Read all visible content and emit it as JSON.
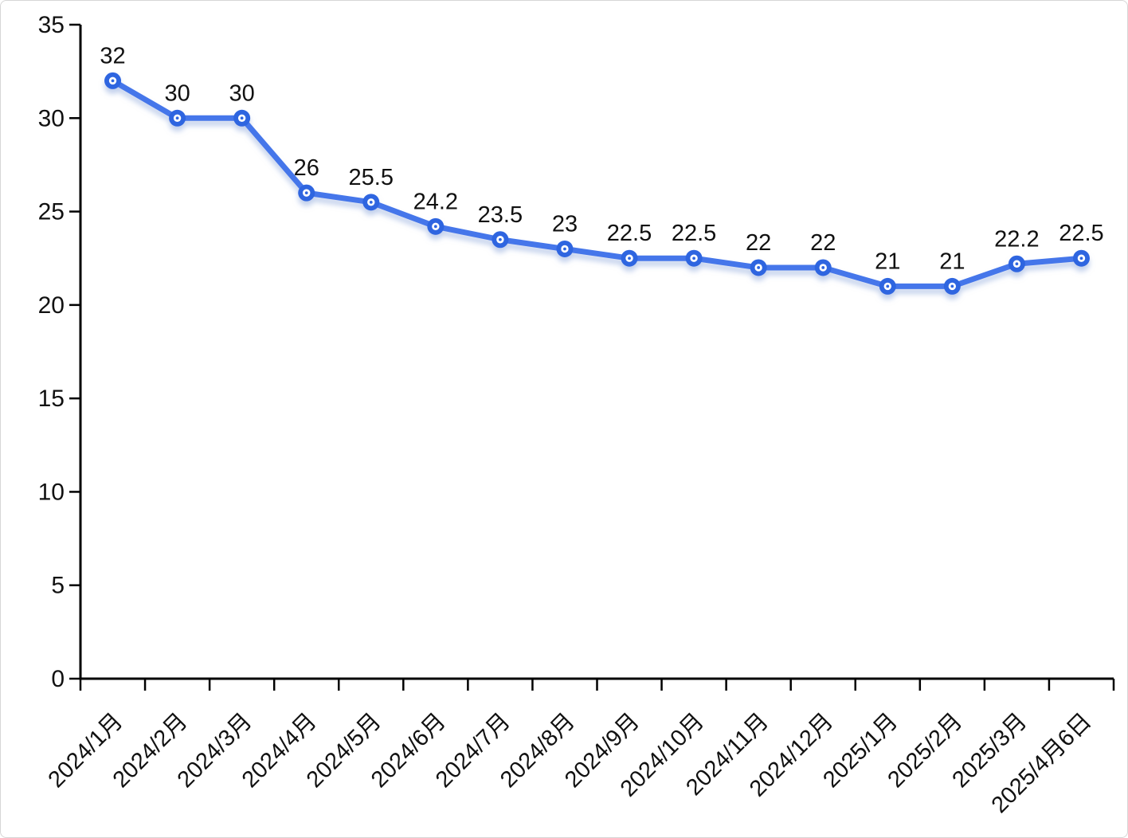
{
  "chart_data": {
    "type": "line",
    "title": "",
    "xlabel": "",
    "ylabel": "",
    "categories": [
      "2024/1月",
      "2024/2月",
      "2024/3月",
      "2024/4月",
      "2024/5月",
      "2024/6月",
      "2024/7月",
      "2024/8月",
      "2024/9月",
      "2024/10月",
      "2024/11月",
      "2024/12月",
      "2025/1月",
      "2025/2月",
      "2025/3月",
      "2025/4月6日"
    ],
    "values": [
      32,
      30,
      30,
      26,
      25.5,
      24.2,
      23.5,
      23,
      22.5,
      22.5,
      22,
      22,
      21,
      21,
      22.2,
      22.5
    ],
    "data_labels": [
      "32",
      "30",
      "30",
      "26",
      "25.5",
      "24.2",
      "23.5",
      "23",
      "22.5",
      "22.5",
      "22",
      "22",
      "21",
      "21",
      "22.2",
      "22.5"
    ],
    "ylim": [
      0,
      35
    ],
    "yticks": [
      0,
      5,
      10,
      15,
      20,
      25,
      30,
      35
    ],
    "grid": false,
    "legend": "none",
    "line_color": "#4476ea",
    "marker_color": "#2f65e0",
    "marker_center_color": "#ffffff",
    "shadow_color": "#8fa8dc",
    "axis_color": "#000000",
    "text_color": "#111111"
  }
}
